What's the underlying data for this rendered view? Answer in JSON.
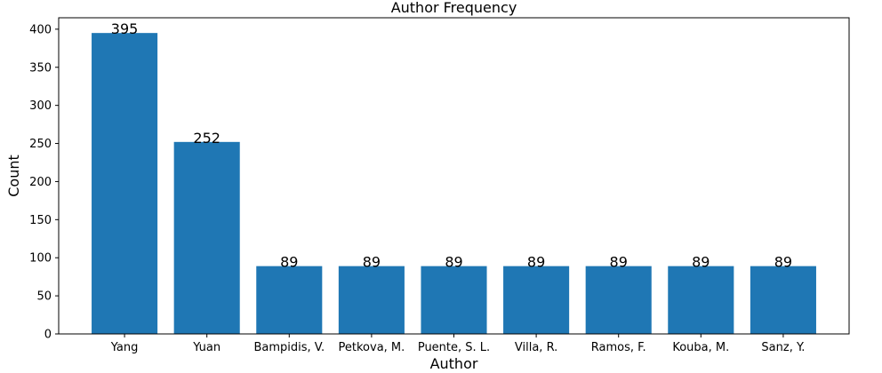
{
  "chart_data": {
    "type": "bar",
    "title": "Author Frequency",
    "xlabel": "Author",
    "ylabel": "Count",
    "categories": [
      "Yang",
      "Yuan",
      "Bampidis, V.",
      "Petkova, M.",
      "Puente, S. L.",
      "Villa, R.",
      "Ramos, F.",
      "Kouba, M.",
      "Sanz, Y."
    ],
    "values": [
      395,
      252,
      89,
      89,
      89,
      89,
      89,
      89,
      89
    ],
    "ylim": [
      0,
      415
    ],
    "yticks": [
      0,
      50,
      100,
      150,
      200,
      250,
      300,
      350,
      400
    ],
    "grid": false,
    "legend": "none",
    "bar_color": "#1f77b4"
  }
}
